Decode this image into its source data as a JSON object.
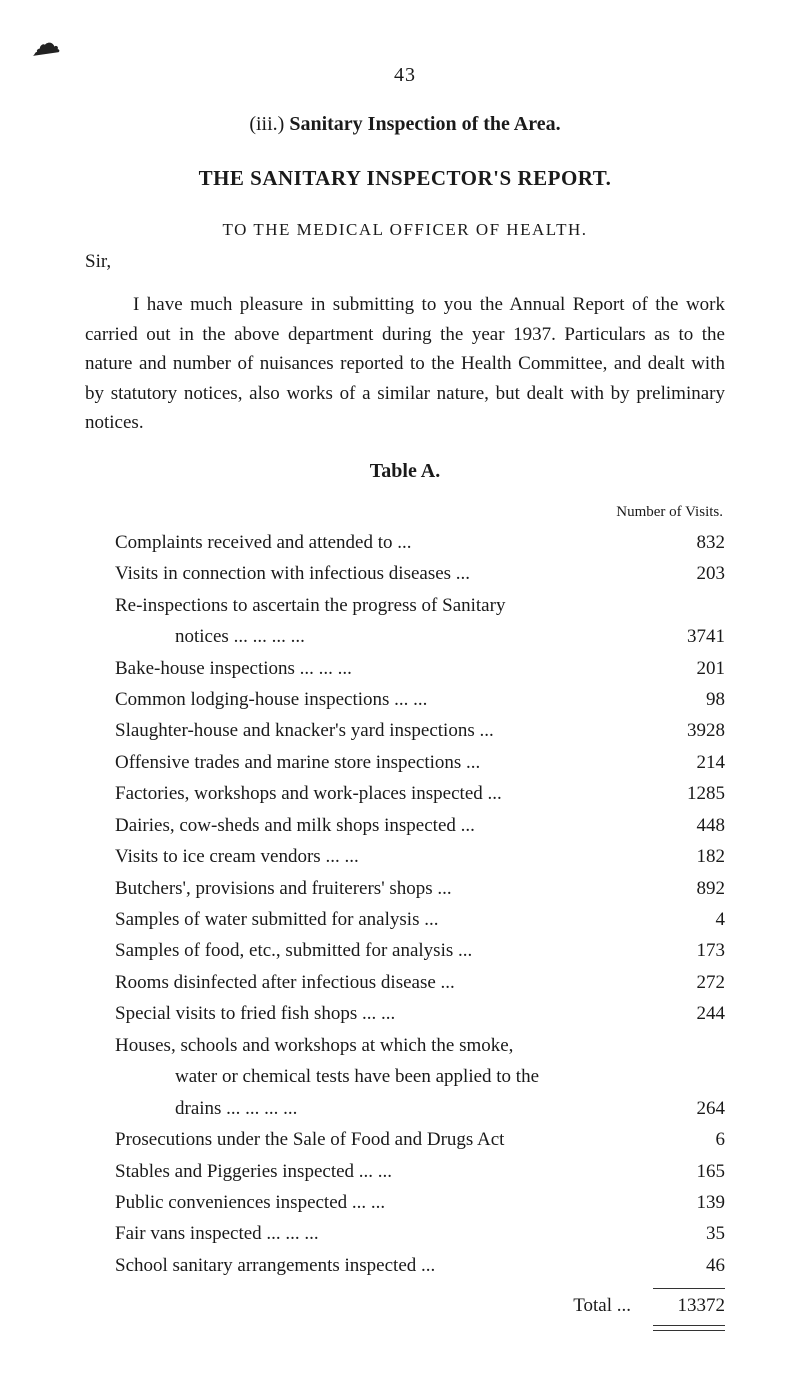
{
  "smudge_glyph": "☁",
  "page_number": "43",
  "section_heading_roman": "(iii.)",
  "section_heading_text": "Sanitary Inspection of the Area.",
  "report_title": "THE SANITARY INSPECTOR'S REPORT.",
  "addressee_line": "TO THE MEDICAL OFFICER OF HEALTH.",
  "salutation": "Sir,",
  "paragraph": "I have much pleasure in submitting to you the Annual Report of the work carried out in the above department during the year 1937. Particulars as to the nature and number of nuisances reported to the Health Committee, and dealt with by statutory notices, also works of a similar nature, but dealt with by preliminary notices.",
  "table_label": "Table A.",
  "visits_header": "Number of Visits.",
  "rows": [
    {
      "label": "Complaints received and attended to ...",
      "value": "832"
    },
    {
      "label": "Visits in connection with infectious diseases   ...",
      "value": "203"
    },
    {
      "label": "Re-inspections to ascertain the progress of Sanitary",
      "value": ""
    },
    {
      "label": "notices       ...            ...            ...            ...",
      "value": "3741",
      "cont": true
    },
    {
      "label": "Bake-house inspections     ...            ...            ...",
      "value": "201"
    },
    {
      "label": "Common lodging-house inspections   ...            ...",
      "value": "98"
    },
    {
      "label": "Slaughter-house and knacker's yard inspections ...",
      "value": "3928"
    },
    {
      "label": "Offensive trades and marine store inspections   ...",
      "value": "214"
    },
    {
      "label": "Factories, workshops and work-places inspected ...",
      "value": "1285"
    },
    {
      "label": "Dairies, cow-sheds and milk shops inspected     ...",
      "value": "448"
    },
    {
      "label": "Visits to ice cream vendors            ...            ...",
      "value": "182"
    },
    {
      "label": "Butchers', provisions and fruiterers' shops      ...",
      "value": "892"
    },
    {
      "label": "Samples of water submitted for analysis          ...",
      "value": "4"
    },
    {
      "label": "Samples of food, etc., submitted for analysis    ...",
      "value": "173"
    },
    {
      "label": "Rooms disinfected after infectious disease       ...",
      "value": "272"
    },
    {
      "label": "Special visits to fried fish shops     ...            ...",
      "value": "244"
    },
    {
      "label": "Houses, schools and workshops at which the smoke,",
      "value": ""
    },
    {
      "label": "water or chemical tests have been applied to the",
      "value": "",
      "cont": true
    },
    {
      "label": "drains        ...            ...            ...            ...",
      "value": "264",
      "cont": true
    },
    {
      "label": "Prosecutions under the Sale of Food and Drugs Act",
      "value": "6"
    },
    {
      "label": "Stables and Piggeries inspected        ...            ...",
      "value": "165"
    },
    {
      "label": "Public conveniences inspected          ...            ...",
      "value": "139"
    },
    {
      "label": "Fair vans inspected          ...            ...            ...",
      "value": "35"
    },
    {
      "label": "School sanitary arrangements inspected           ...",
      "value": "46"
    }
  ],
  "total_label": "Total   ...",
  "total_value": "13372"
}
